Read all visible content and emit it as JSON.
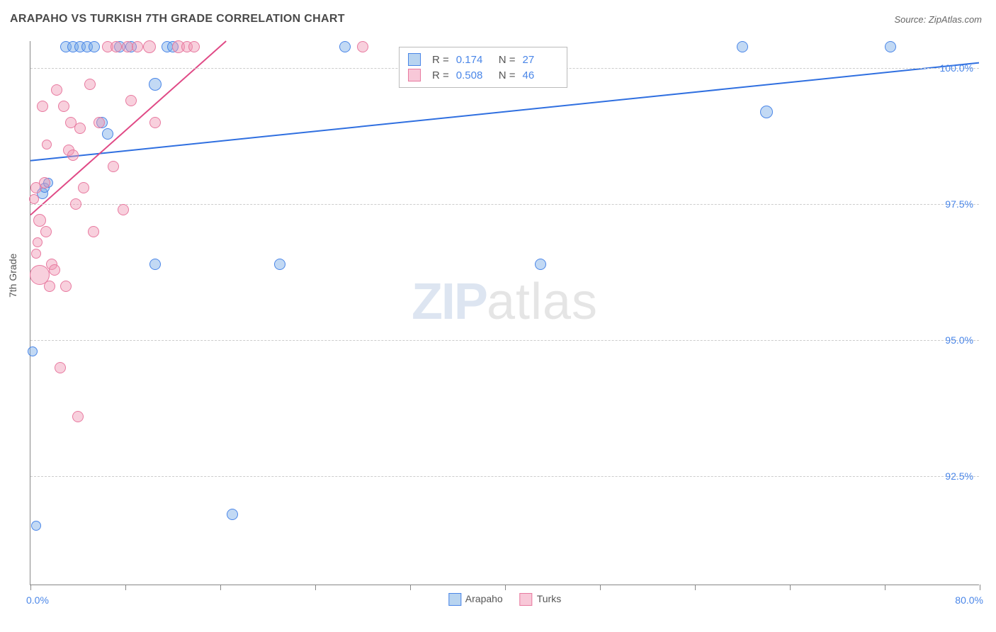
{
  "header": {
    "title": "ARAPAHO VS TURKISH 7TH GRADE CORRELATION CHART",
    "source": "Source: ZipAtlas.com"
  },
  "watermark": {
    "part1": "ZIP",
    "part2": "atlas"
  },
  "chart": {
    "type": "scatter",
    "ylabel": "7th Grade",
    "background_color": "#ffffff",
    "grid_color": "#cccccc",
    "axis_color": "#888888",
    "tick_label_color": "#4a86e8",
    "xlim": [
      0,
      80
    ],
    "ylim": [
      90.5,
      100.5
    ],
    "xlim_labels": {
      "min": "0.0%",
      "max": "80.0%"
    },
    "xticks_minor": [
      0,
      8,
      16,
      24,
      32,
      40,
      48,
      56,
      64,
      72,
      80
    ],
    "yticks": [
      {
        "v": 92.5,
        "label": "92.5%"
      },
      {
        "v": 95.0,
        "label": "95.0%"
      },
      {
        "v": 97.5,
        "label": "97.5%"
      },
      {
        "v": 100.0,
        "label": "100.0%"
      }
    ],
    "legend_top": [
      {
        "swatch_fill": "#b8d4f0",
        "swatch_border": "#4a86e8",
        "r_label": "R =",
        "r_val": "0.174",
        "n_label": "N =",
        "n_val": "27"
      },
      {
        "swatch_fill": "#f8c8d8",
        "swatch_border": "#e87aa0",
        "r_label": "R =",
        "r_val": "0.508",
        "n_label": "N =",
        "n_val": "46"
      }
    ],
    "legend_bottom": [
      {
        "label": "Arapaho",
        "fill": "#b8d4f0",
        "border": "#4a86e8"
      },
      {
        "label": "Turks",
        "fill": "#f8c8d8",
        "border": "#e87aa0"
      }
    ],
    "series": [
      {
        "name": "Arapaho",
        "color_fill": "rgba(120,170,230,0.45)",
        "color_border": "#4a86e8",
        "marker_r": 8,
        "trend": {
          "x1": 0,
          "y1": 98.3,
          "x2": 80,
          "y2": 100.1,
          "color": "#2f6fe0",
          "width": 2
        },
        "points": [
          {
            "x": 0.2,
            "y": 94.8,
            "r": 7
          },
          {
            "x": 0.5,
            "y": 91.6,
            "r": 7
          },
          {
            "x": 1.0,
            "y": 97.7,
            "r": 8
          },
          {
            "x": 1.2,
            "y": 97.8,
            "r": 7
          },
          {
            "x": 1.5,
            "y": 97.9,
            "r": 7
          },
          {
            "x": 3.0,
            "y": 100.4,
            "r": 8
          },
          {
            "x": 3.6,
            "y": 100.4,
            "r": 8
          },
          {
            "x": 4.2,
            "y": 100.4,
            "r": 8
          },
          {
            "x": 4.8,
            "y": 100.4,
            "r": 8
          },
          {
            "x": 5.4,
            "y": 100.4,
            "r": 8
          },
          {
            "x": 6.0,
            "y": 99.0,
            "r": 8
          },
          {
            "x": 6.5,
            "y": 98.8,
            "r": 8
          },
          {
            "x": 7.5,
            "y": 100.4,
            "r": 8
          },
          {
            "x": 8.5,
            "y": 100.4,
            "r": 8
          },
          {
            "x": 10.5,
            "y": 96.4,
            "r": 8
          },
          {
            "x": 10.5,
            "y": 99.7,
            "r": 9
          },
          {
            "x": 11.5,
            "y": 100.4,
            "r": 8
          },
          {
            "x": 12.0,
            "y": 100.4,
            "r": 8
          },
          {
            "x": 17.0,
            "y": 91.8,
            "r": 8
          },
          {
            "x": 21.0,
            "y": 96.4,
            "r": 8
          },
          {
            "x": 26.5,
            "y": 100.4,
            "r": 8
          },
          {
            "x": 43.0,
            "y": 96.4,
            "r": 8
          },
          {
            "x": 60.0,
            "y": 100.4,
            "r": 8
          },
          {
            "x": 62.0,
            "y": 99.2,
            "r": 9
          },
          {
            "x": 72.5,
            "y": 100.4,
            "r": 8
          }
        ]
      },
      {
        "name": "Turks",
        "color_fill": "rgba(240,150,180,0.45)",
        "color_border": "#e87aa0",
        "marker_r": 8,
        "trend": {
          "x1": 0,
          "y1": 97.3,
          "x2": 16.5,
          "y2": 100.5,
          "color": "#e04a86",
          "width": 2
        },
        "points": [
          {
            "x": 0.3,
            "y": 97.6,
            "r": 7
          },
          {
            "x": 0.5,
            "y": 97.8,
            "r": 8
          },
          {
            "x": 0.5,
            "y": 96.6,
            "r": 7
          },
          {
            "x": 0.6,
            "y": 96.8,
            "r": 7
          },
          {
            "x": 0.8,
            "y": 97.2,
            "r": 9
          },
          {
            "x": 0.8,
            "y": 96.2,
            "r": 14
          },
          {
            "x": 1.0,
            "y": 99.3,
            "r": 8
          },
          {
            "x": 1.2,
            "y": 97.9,
            "r": 8
          },
          {
            "x": 1.3,
            "y": 97.0,
            "r": 8
          },
          {
            "x": 1.4,
            "y": 98.6,
            "r": 7
          },
          {
            "x": 1.6,
            "y": 96.0,
            "r": 8
          },
          {
            "x": 1.8,
            "y": 96.4,
            "r": 8
          },
          {
            "x": 2.0,
            "y": 96.3,
            "r": 8
          },
          {
            "x": 2.2,
            "y": 99.6,
            "r": 8
          },
          {
            "x": 2.5,
            "y": 94.5,
            "r": 8
          },
          {
            "x": 2.8,
            "y": 99.3,
            "r": 8
          },
          {
            "x": 3.0,
            "y": 96.0,
            "r": 8
          },
          {
            "x": 3.2,
            "y": 98.5,
            "r": 8
          },
          {
            "x": 3.4,
            "y": 99.0,
            "r": 8
          },
          {
            "x": 3.6,
            "y": 98.4,
            "r": 8
          },
          {
            "x": 3.8,
            "y": 97.5,
            "r": 8
          },
          {
            "x": 4.0,
            "y": 93.6,
            "r": 8
          },
          {
            "x": 4.2,
            "y": 98.9,
            "r": 8
          },
          {
            "x": 4.5,
            "y": 97.8,
            "r": 8
          },
          {
            "x": 5.0,
            "y": 99.7,
            "r": 8
          },
          {
            "x": 5.3,
            "y": 97.0,
            "r": 8
          },
          {
            "x": 5.8,
            "y": 99.0,
            "r": 8
          },
          {
            "x": 6.5,
            "y": 100.4,
            "r": 8
          },
          {
            "x": 7.0,
            "y": 98.2,
            "r": 8
          },
          {
            "x": 7.2,
            "y": 100.4,
            "r": 8
          },
          {
            "x": 7.8,
            "y": 97.4,
            "r": 8
          },
          {
            "x": 8.2,
            "y": 100.4,
            "r": 8
          },
          {
            "x": 8.5,
            "y": 99.4,
            "r": 8
          },
          {
            "x": 9.0,
            "y": 100.4,
            "r": 8
          },
          {
            "x": 10.0,
            "y": 100.4,
            "r": 9
          },
          {
            "x": 10.5,
            "y": 99.0,
            "r": 8
          },
          {
            "x": 12.5,
            "y": 100.4,
            "r": 9
          },
          {
            "x": 13.2,
            "y": 100.4,
            "r": 8
          },
          {
            "x": 13.8,
            "y": 100.4,
            "r": 8
          },
          {
            "x": 28.0,
            "y": 100.4,
            "r": 8
          }
        ]
      }
    ]
  }
}
